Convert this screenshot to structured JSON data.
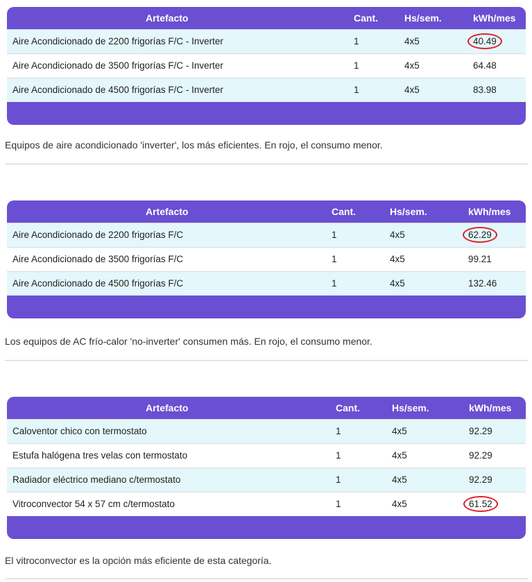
{
  "tables": [
    {
      "headers": [
        "Artefacto",
        "Cant.",
        "Hs/sem.",
        "kWh/mes"
      ],
      "rows": [
        [
          "Aire Acondicionado de 2200 frigorías F/C - Inverter",
          "1",
          "4x5",
          "40.49"
        ],
        [
          "Aire Acondicionado de 3500 frigorías F/C - Inverter",
          "1",
          "4x5",
          "64.48"
        ],
        [
          "Aire Acondicionado de 4500 frigorías F/C - Inverter",
          "1",
          "4x5",
          "83.98"
        ]
      ],
      "caption": "Equipos de aire acondicionado 'inverter', los más eficientes. En rojo, el consumo menor."
    },
    {
      "headers": [
        "Artefacto",
        "Cant.",
        "Hs/sem.",
        "kWh/mes"
      ],
      "rows": [
        [
          "Aire Acondicionado de 2200 frigorías F/C",
          "1",
          "4x5",
          "62.29"
        ],
        [
          "Aire Acondicionado de 3500 frigorías F/C",
          "1",
          "4x5",
          "99.21"
        ],
        [
          "Aire Acondicionado de 4500 frigorías F/C",
          "1",
          "4x5",
          "132.46"
        ]
      ],
      "caption": "Los equipos de AC frío-calor 'no-inverter' consumen más. En rojo, el consumo menor."
    },
    {
      "headers": [
        "Artefacto",
        "Cant.",
        "Hs/sem.",
        "kWh/mes"
      ],
      "rows": [
        [
          "Caloventor chico con termostato",
          "1",
          "4x5",
          "92.29"
        ],
        [
          "Estufa halógena tres velas con termostato",
          "1",
          "4x5",
          "92.29"
        ],
        [
          "Radiador eléctrico mediano c/termostato",
          "1",
          "4x5",
          "92.29"
        ],
        [
          "Vitroconvector 54 x 57 cm c/termostato",
          "1",
          "4x5",
          "61.52"
        ]
      ],
      "caption": "El vitroconvector es la opción más eficiente de esta categoría."
    }
  ],
  "colors": {
    "header": "#6a4fd2",
    "row_alt": "#e4f7fb",
    "highlight": "#e0202a"
  },
  "highlighted_values": [
    "40.49",
    "62.29",
    "61.52"
  ]
}
